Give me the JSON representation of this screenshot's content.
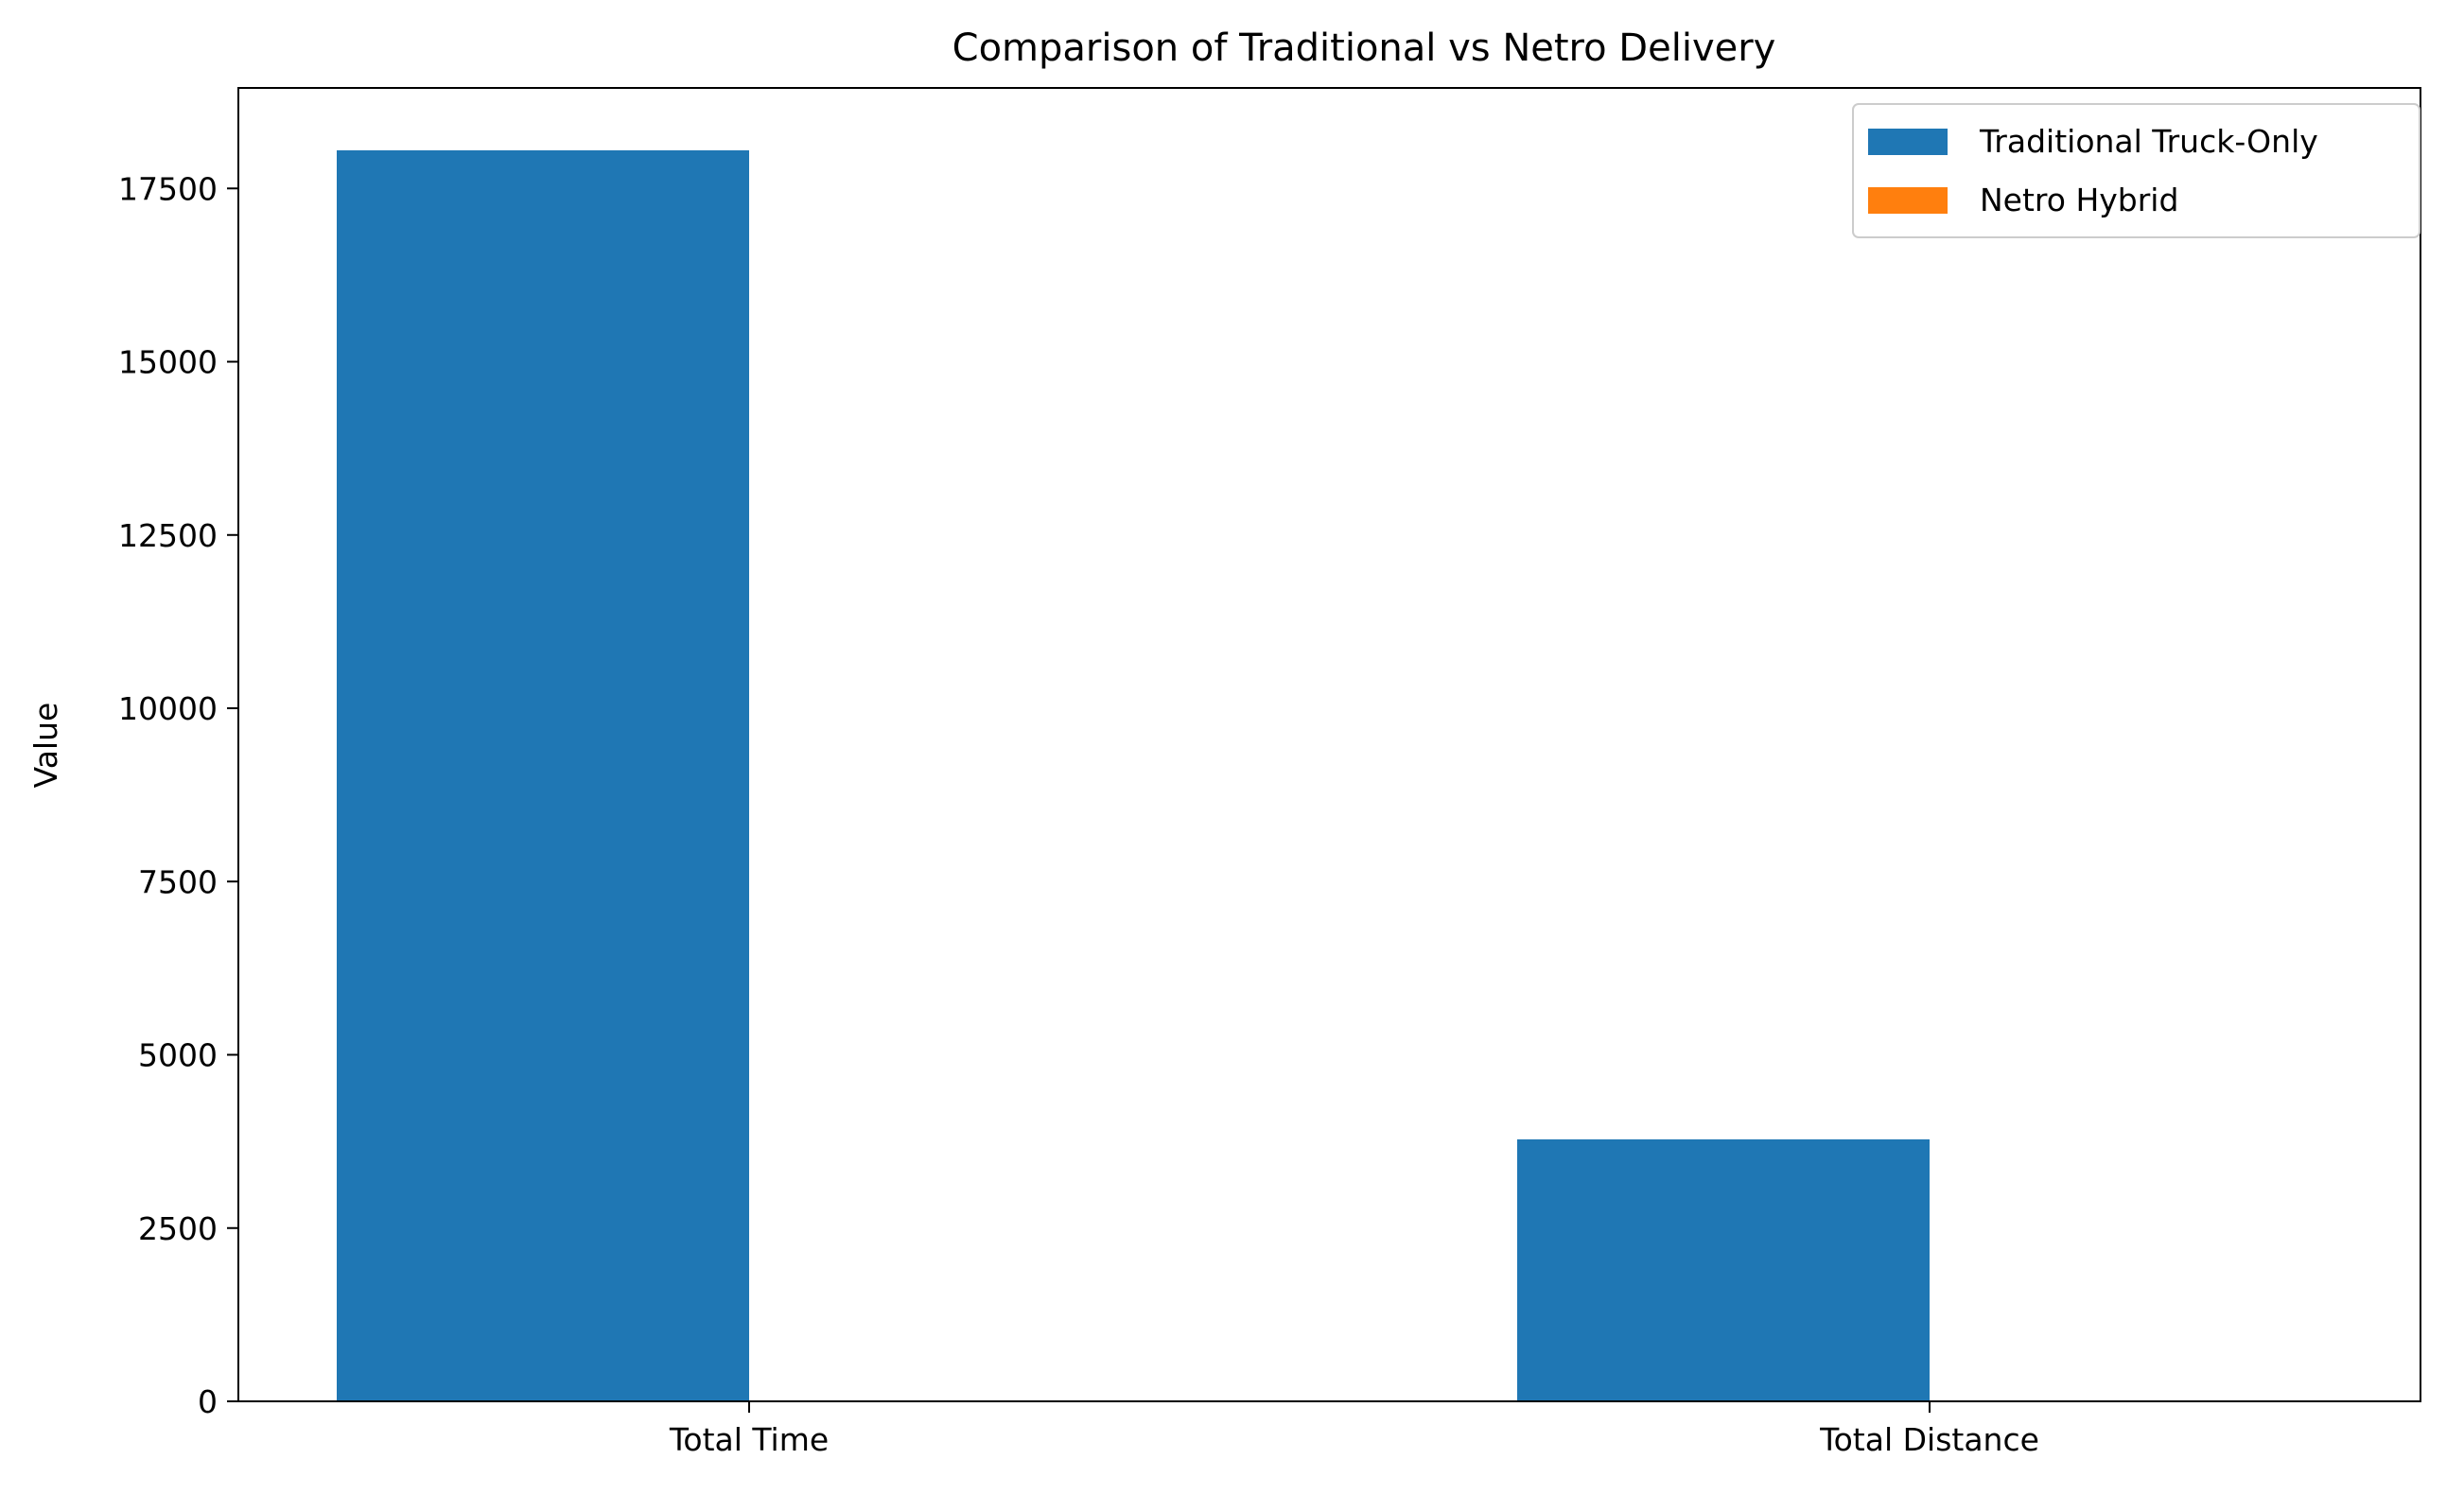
{
  "chart_data": {
    "type": "bar",
    "title": "Comparison of Traditional vs Netro Delivery",
    "xlabel": "",
    "ylabel": "Value",
    "categories": [
      "Total Time",
      "Total Distance"
    ],
    "series": [
      {
        "name": "Traditional Truck-Only",
        "color": "#1f77b4",
        "values": [
          18050,
          3780
        ]
      },
      {
        "name": "Netro Hybrid",
        "color": "#ff7f0e",
        "values": [
          0,
          0
        ]
      }
    ],
    "ylim": [
      0,
      18950
    ],
    "yticks": [
      0,
      2500,
      5000,
      7500,
      10000,
      12500,
      15000,
      17500
    ],
    "grid": false,
    "legend_position": "top-right"
  }
}
